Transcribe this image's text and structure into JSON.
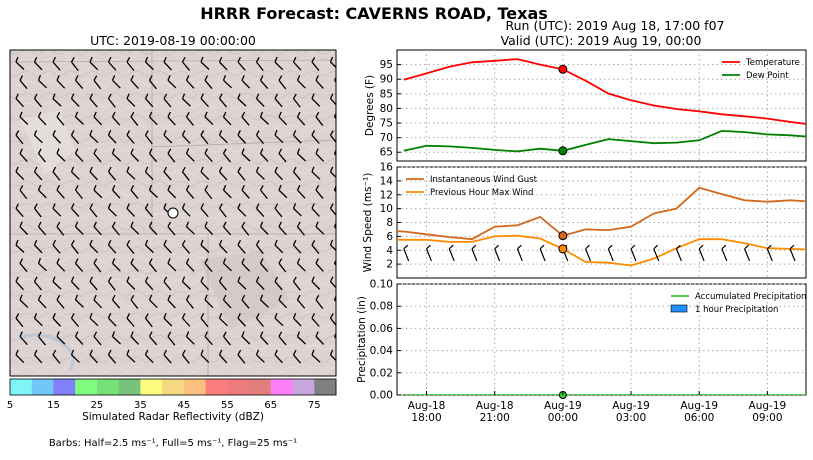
{
  "title": "HRRR Forecast: CAVERNS ROAD, Texas",
  "run_label": "Run (UTC): 2019 Aug 18, 17:00 f07",
  "valid_label": "Valid (UTC): 2019 Aug 19, 00:00",
  "map": {
    "title": "UTC: 2019-08-19 00:00:00",
    "colorbar": {
      "label": "Simulated Radar Reflectivity (dBZ)",
      "ticks": [
        "5",
        "15",
        "25",
        "35",
        "45",
        "55",
        "65",
        "75"
      ],
      "colors": [
        "#7ff6f5",
        "#73c6f8",
        "#8080f8",
        "#7ffb7f",
        "#78e078",
        "#78c37b",
        "#fdfb7d",
        "#f5d982",
        "#fbc07d",
        "#fd7d7d",
        "#ec7b7b",
        "#e17e7e",
        "#fd80f9",
        "#c7a7e0",
        "#808080"
      ]
    },
    "barbs_caption": "Barbs: Half=2.5 ms⁻¹, Full=5 ms⁻¹, Flag=25 ms⁻¹"
  },
  "colors": {
    "temperature": "#ff0000",
    "dewpoint": "#008000",
    "gust": "#d2691e",
    "maxwind": "#ff8c00",
    "accum_precip": "#32cd32",
    "hourly_precip": "#1e90ff"
  },
  "chart_data": [
    {
      "type": "line",
      "ylabel": "Degrees (F)",
      "x_hours": [
        -7,
        -6,
        -5,
        -4,
        -3,
        -2,
        -1,
        0,
        1,
        2,
        3,
        4,
        5,
        6,
        7,
        8,
        9,
        10,
        11,
        12
      ],
      "ylim": [
        62,
        100
      ],
      "yticks": [
        65,
        70,
        75,
        80,
        85,
        90,
        95
      ],
      "series": [
        {
          "name": "Temperature",
          "values": [
            89.8,
            92.0,
            94.3,
            95.8,
            96.3,
            96.9,
            95.0,
            93.4,
            89.5,
            85.1,
            82.8,
            81.0,
            79.8,
            79.0,
            78.0,
            77.3,
            76.5,
            75.4,
            74.4,
            73.6
          ]
        },
        {
          "name": "Dew Point",
          "values": [
            65.5,
            67.2,
            67.0,
            66.5,
            65.8,
            65.3,
            66.2,
            65.5,
            67.5,
            69.5,
            68.8,
            68.1,
            68.3,
            69.1,
            72.3,
            71.9,
            71.1,
            70.8,
            70.2,
            69.4
          ]
        }
      ],
      "marker_x": 0,
      "legend": "top-right"
    },
    {
      "type": "line",
      "ylabel": "Wind Speed (ms⁻¹)",
      "x_hours": [
        -9,
        -8,
        -7,
        -6,
        -5,
        -4,
        -3,
        -2,
        -1,
        0,
        1,
        2,
        3,
        4,
        5,
        6,
        7,
        8,
        9,
        10,
        11,
        12
      ],
      "ylim": [
        0,
        16
      ],
      "yticks": [
        2,
        4,
        6,
        8,
        10,
        12,
        14,
        16
      ],
      "series": [
        {
          "name": "Instantaneous Wind Gust",
          "values": [
            7.5,
            6.8,
            6.7,
            6.3,
            5.9,
            5.6,
            7.4,
            7.6,
            8.8,
            6.1,
            7.0,
            6.9,
            7.4,
            9.3,
            10.0,
            13.0,
            12.1,
            11.2,
            11.0,
            11.2,
            11.0,
            10.8
          ]
        },
        {
          "name": "Previous Hour Max Wind",
          "values": [
            5.3,
            5.6,
            5.5,
            5.5,
            5.2,
            5.2,
            6.0,
            6.1,
            5.7,
            4.2,
            2.3,
            2.2,
            1.8,
            2.8,
            4.3,
            5.6,
            5.6,
            5.0,
            4.3,
            4.2,
            4.1,
            4.0
          ]
        }
      ],
      "marker_x": 0,
      "legend": "top-left"
    },
    {
      "type": "line",
      "ylabel": "Precipitation (in)",
      "x_hours": [
        -7,
        -6,
        -5,
        -4,
        -3,
        -2,
        -1,
        0,
        1,
        2,
        3,
        4,
        5,
        6,
        7,
        8,
        9,
        10,
        11,
        12
      ],
      "ylim": [
        0,
        0.1
      ],
      "yticks": [
        "0.00",
        "0.02",
        "0.04",
        "0.06",
        "0.08",
        "0.10"
      ],
      "series": [
        {
          "name": "Accumulated Precipitation",
          "values": [
            0,
            0,
            0,
            0,
            0,
            0,
            0,
            0,
            0,
            0,
            0,
            0,
            0,
            0,
            0,
            0,
            0,
            0,
            0,
            0
          ]
        },
        {
          "name": "1 hour Precipitation",
          "values": [
            0,
            0,
            0,
            0,
            0,
            0,
            0,
            0,
            0,
            0,
            0,
            0,
            0,
            0,
            0,
            0,
            0,
            0,
            0,
            0
          ]
        }
      ],
      "marker_x": 0,
      "legend": "top-right"
    }
  ],
  "x_axis": {
    "range_hours": [
      -7.3,
      10.7
    ],
    "ticks": [
      {
        "h": -6,
        "l1": "Aug-18",
        "l2": "18:00"
      },
      {
        "h": -3,
        "l1": "Aug-18",
        "l2": "21:00"
      },
      {
        "h": 0,
        "l1": "Aug-19",
        "l2": "00:00"
      },
      {
        "h": 3,
        "l1": "Aug-19",
        "l2": "03:00"
      },
      {
        "h": 6,
        "l1": "Aug-19",
        "l2": "06:00"
      },
      {
        "h": 9,
        "l1": "Aug-19",
        "l2": "09:00"
      }
    ]
  }
}
